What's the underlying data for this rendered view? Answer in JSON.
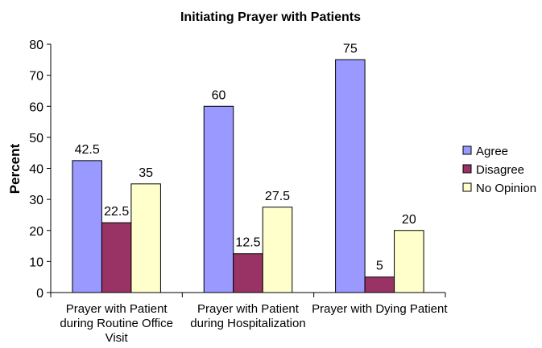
{
  "chart_data": {
    "type": "bar",
    "title": "Initiating Prayer with Patients",
    "y_label": "Percent",
    "categories": [
      "Prayer with Patient during Routine Office Visit",
      "Prayer with Patient during Hospitalization",
      "Prayer with Dying Patient"
    ],
    "series": [
      {
        "name": "Agree",
        "color": "#9999ff",
        "values": [
          42.5,
          60,
          75
        ]
      },
      {
        "name": "Disagree",
        "color": "#993366",
        "values": [
          22.5,
          12.5,
          5
        ]
      },
      {
        "name": "No Opinion",
        "color": "#ffffcc",
        "values": [
          35,
          27.5,
          20
        ]
      }
    ],
    "ylim": [
      0,
      80
    ],
    "yticks": [
      0,
      10,
      20,
      30,
      40,
      50,
      60,
      70,
      80
    ],
    "legend": "right"
  }
}
